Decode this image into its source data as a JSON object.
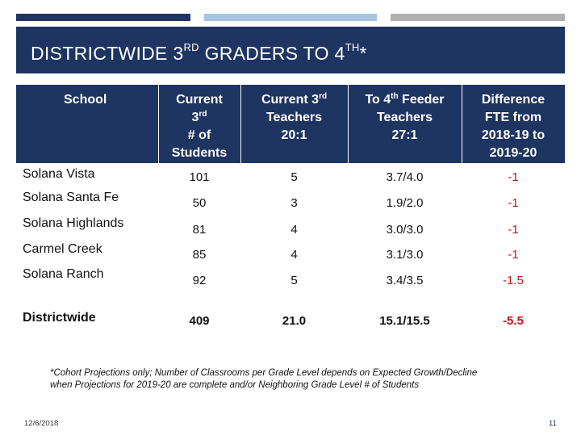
{
  "colors": {
    "navy": "#1e3461",
    "light_blue": "#a7c4e0",
    "gray": "#b0b0b0",
    "negative": "#cc1111"
  },
  "title": {
    "main": "DISTRICTWIDE 3",
    "sup1": "RD",
    "mid": " GRADERS TO 4",
    "sup2": "TH",
    "end": "*"
  },
  "headers": {
    "school": "School",
    "current": "Current",
    "current_3": "3",
    "current_3_sup": "rd",
    "current_num": "# of",
    "current_students": "Students",
    "teachers_a": "Current 3",
    "teachers_a_sup": "rd",
    "teachers_b": "Teachers",
    "teachers_c": "20:1",
    "feeder_a": "To 4",
    "feeder_a_sup": "th",
    "feeder_a2": " Feeder",
    "feeder_b": "Teachers",
    "feeder_c": "27:1",
    "diff_a": "Difference",
    "diff_b": "FTE from",
    "diff_c": "2018-19 to",
    "diff_d": "2019-20"
  },
  "rows": [
    {
      "school": "Solana Vista",
      "students": "101",
      "teachers": "5",
      "feeder": "3.7/4.0",
      "diff": "-1"
    },
    {
      "school": "Solana Santa Fe",
      "students": "50",
      "teachers": "3",
      "feeder": "1.9/2.0",
      "diff": "-1"
    },
    {
      "school": "Solana Highlands",
      "students": "81",
      "teachers": "4",
      "feeder": "3.0/3.0",
      "diff": "-1"
    },
    {
      "school": "Carmel Creek",
      "students": "85",
      "teachers": "4",
      "feeder": "3.1/3.0",
      "diff": "-1"
    },
    {
      "school": "Solana Ranch",
      "students": "92",
      "teachers": "5",
      "feeder": "3.4/3.5",
      "diff": "-1.5"
    },
    {
      "school": "Districtwide",
      "students": "409",
      "teachers": "21.0",
      "feeder": "15.1/15.5",
      "diff": "-5.5"
    }
  ],
  "footnote": "*Cohort Projections only; Number of Classrooms per Grade Level depends on Expected Growth/Decline when Projections for 2019-20 are complete and/or Neighboring Grade Level # of Students",
  "date": "12/6/2018",
  "page_number": "11"
}
